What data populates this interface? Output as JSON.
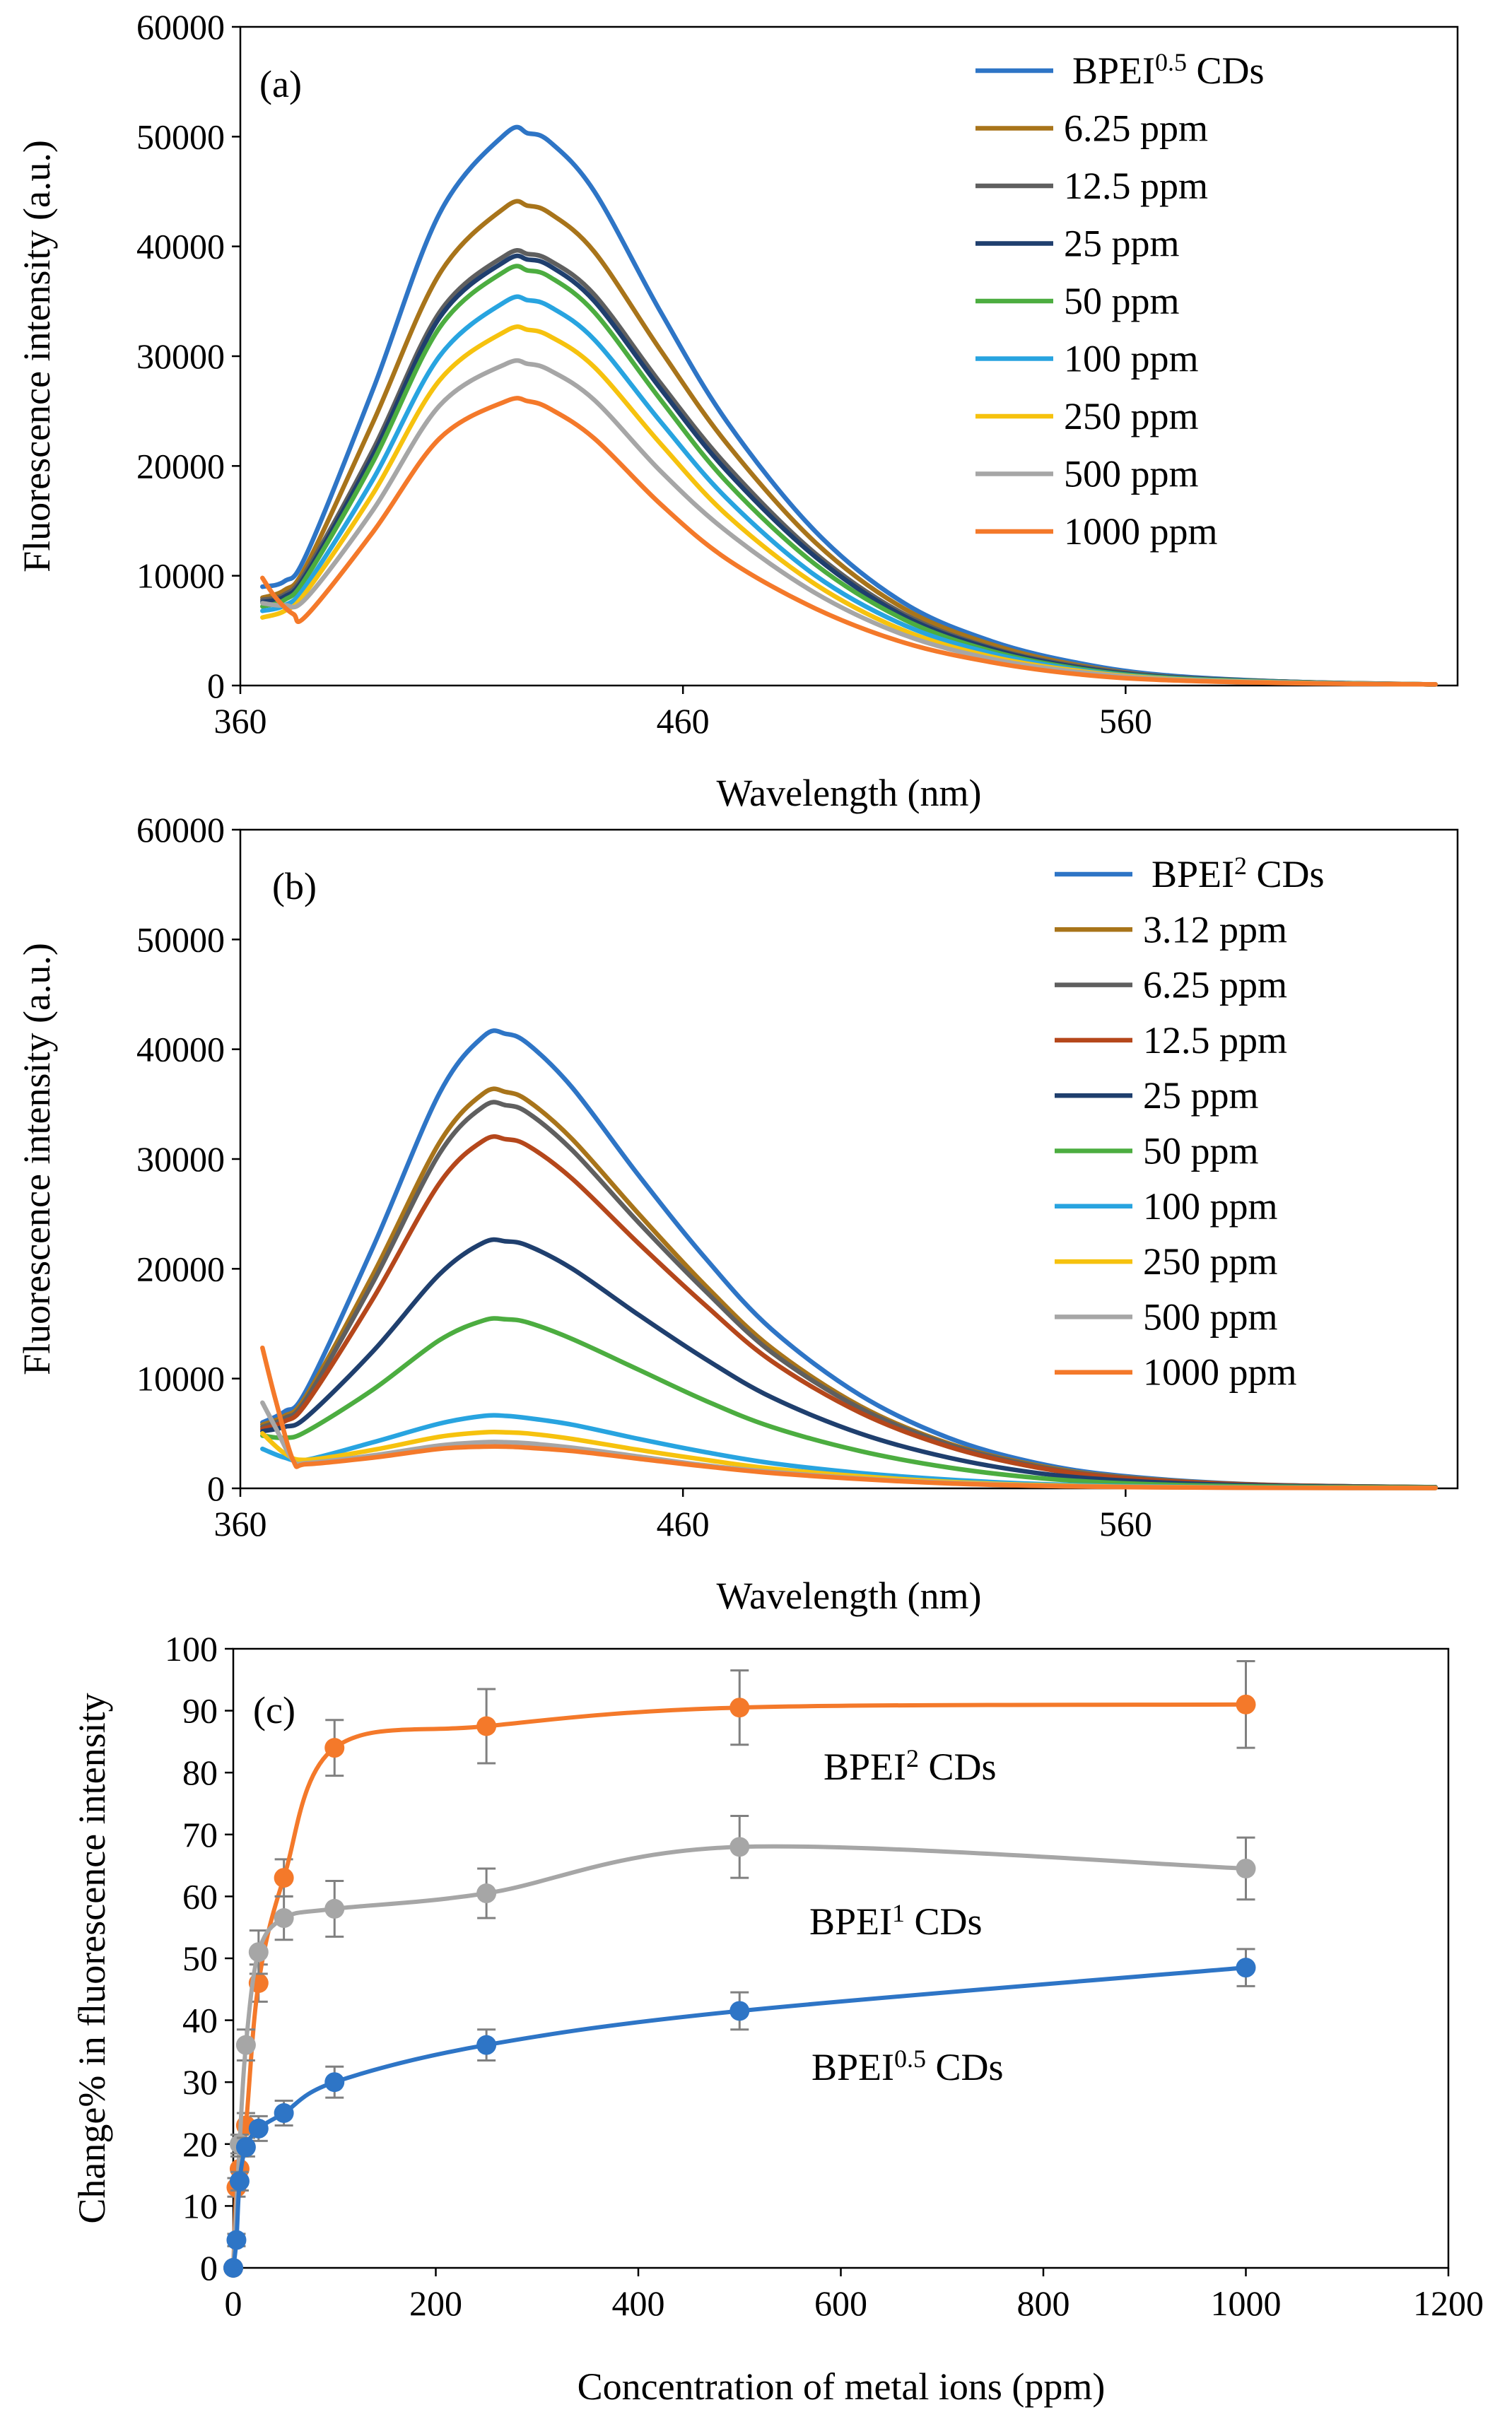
{
  "chart_data": [
    {
      "type": "line",
      "panel_label": "(a)",
      "xlabel": "Wavelength (nm)",
      "ylabel": "Fluorescence intensity (a.u.)",
      "xlim": [
        360,
        635
      ],
      "ylim": [
        0,
        60000
      ],
      "x_ticks": [
        "360",
        "460",
        "560"
      ],
      "y_ticks": [
        "0",
        "10000",
        "20000",
        "30000",
        "40000",
        "50000",
        "60000"
      ],
      "legend_position": "top-right",
      "series": [
        {
          "name": "BPEI0.5 CDs",
          "legend_base": "BPEI",
          "legend_sup": "0.5",
          "legend_tail": " CDs",
          "color": "#2E75C6",
          "x": [
            365,
            370,
            375,
            390,
            405,
            420,
            425,
            430,
            440,
            455,
            470,
            490,
            510,
            530,
            550,
            570,
            600,
            630
          ],
          "y": [
            9000,
            9500,
            12000,
            27000,
            43000,
            50300,
            50300,
            49500,
            45000,
            34000,
            24000,
            14000,
            7500,
            4000,
            2000,
            900,
            300,
            100
          ]
        },
        {
          "name": "6.25 ppm",
          "color": "#A8741A",
          "x": [
            365,
            370,
            375,
            390,
            405,
            420,
            425,
            430,
            440,
            455,
            470,
            490,
            510,
            530,
            550,
            570,
            600,
            630
          ],
          "y": [
            8000,
            8700,
            11000,
            24000,
            37500,
            43600,
            43700,
            43000,
            39500,
            30500,
            22000,
            13000,
            7000,
            3700,
            1800,
            800,
            300,
            100
          ]
        },
        {
          "name": "12.5 ppm",
          "color": "#5F5F5F",
          "x": [
            365,
            370,
            375,
            390,
            405,
            420,
            425,
            430,
            440,
            455,
            470,
            490,
            510,
            530,
            550,
            570,
            600,
            630
          ],
          "y": [
            7800,
            8300,
            10500,
            21500,
            34000,
            39200,
            39300,
            38700,
            35600,
            27500,
            20000,
            12000,
            6500,
            3400,
            1700,
            800,
            300,
            100
          ]
        },
        {
          "name": "25 ppm",
          "color": "#1F3F6E",
          "x": [
            365,
            370,
            375,
            390,
            405,
            420,
            425,
            430,
            440,
            455,
            470,
            490,
            510,
            530,
            550,
            570,
            600,
            630
          ],
          "y": [
            7600,
            8100,
            10200,
            21000,
            33500,
            38700,
            38800,
            38200,
            35000,
            27000,
            19500,
            11700,
            6300,
            3300,
            1600,
            750,
            300,
            100
          ]
        },
        {
          "name": "50 ppm",
          "color": "#4CAD40",
          "x": [
            365,
            370,
            375,
            390,
            405,
            420,
            425,
            430,
            440,
            455,
            470,
            490,
            510,
            530,
            550,
            570,
            600,
            630
          ],
          "y": [
            7200,
            7800,
            9900,
            20400,
            32600,
            37800,
            37800,
            37200,
            34000,
            26000,
            18500,
            11000,
            6000,
            3100,
            1500,
            700,
            280,
            100
          ]
        },
        {
          "name": "100 ppm",
          "color": "#28A4E0",
          "x": [
            365,
            370,
            375,
            390,
            405,
            420,
            425,
            430,
            440,
            455,
            470,
            490,
            510,
            530,
            550,
            570,
            600,
            630
          ],
          "y": [
            6800,
            7300,
            9200,
            18800,
            30000,
            35000,
            35100,
            34500,
            31500,
            24000,
            17000,
            10000,
            5500,
            2900,
            1400,
            650,
            260,
            100
          ]
        },
        {
          "name": "250 ppm",
          "color": "#F6C20E",
          "x": [
            365,
            370,
            375,
            390,
            405,
            420,
            425,
            430,
            440,
            455,
            470,
            490,
            510,
            530,
            550,
            570,
            600,
            630
          ],
          "y": [
            6200,
            6800,
            8600,
            17500,
            27800,
            32300,
            32400,
            31800,
            29000,
            22000,
            15500,
            9200,
            5000,
            2600,
            1300,
            600,
            240,
            100
          ]
        },
        {
          "name": "500 ppm",
          "color": "#A6A6A6",
          "x": [
            365,
            370,
            375,
            390,
            405,
            420,
            425,
            430,
            440,
            455,
            470,
            490,
            510,
            530,
            550,
            570,
            600,
            630
          ],
          "y": [
            7500,
            7300,
            8000,
            16000,
            25500,
            29300,
            29300,
            28700,
            26000,
            19500,
            14000,
            8400,
            4600,
            2400,
            1200,
            550,
            220,
            100
          ]
        },
        {
          "name": "1000 ppm",
          "color": "#F4792A",
          "x": [
            365,
            368,
            372,
            375,
            390,
            405,
            420,
            425,
            430,
            440,
            455,
            470,
            490,
            510,
            530,
            550,
            570,
            600,
            630
          ],
          "y": [
            9800,
            8000,
            6500,
            6400,
            14000,
            22500,
            25900,
            25900,
            25200,
            22500,
            16500,
            11500,
            7000,
            3900,
            2100,
            1000,
            480,
            200,
            100
          ]
        }
      ]
    },
    {
      "type": "line",
      "panel_label": "(b)",
      "xlabel": "Wavelength (nm)",
      "ylabel": "Fluorescence intensity (a.u.)",
      "xlim": [
        360,
        635
      ],
      "ylim": [
        0,
        60000
      ],
      "x_ticks": [
        "360",
        "460",
        "560"
      ],
      "y_ticks": [
        "0",
        "10000",
        "20000",
        "30000",
        "40000",
        "50000",
        "60000"
      ],
      "legend_position": "top-right",
      "series": [
        {
          "name": "BPEI2 CDs",
          "legend_base": "BPEI",
          "legend_sup": "2",
          "legend_tail": " CDs",
          "color": "#2E75C6",
          "x": [
            365,
            370,
            375,
            390,
            405,
            415,
            420,
            425,
            435,
            450,
            465,
            480,
            500,
            520,
            540,
            560,
            590,
            630
          ],
          "y": [
            6000,
            7000,
            9000,
            22000,
            36000,
            41200,
            41400,
            40500,
            36500,
            28500,
            21000,
            14500,
            8500,
            4600,
            2300,
            1100,
            350,
            100
          ]
        },
        {
          "name": "3.12 ppm",
          "color": "#A8741A",
          "x": [
            365,
            370,
            375,
            390,
            405,
            415,
            420,
            425,
            435,
            450,
            465,
            480,
            500,
            520,
            540,
            560,
            590,
            630
          ],
          "y": [
            5800,
            6600,
            8500,
            19500,
            31500,
            36000,
            36100,
            35300,
            31800,
            25000,
            18500,
            12800,
            7500,
            4100,
            2100,
            1000,
            330,
            100
          ]
        },
        {
          "name": "6.25 ppm",
          "color": "#5F5F5F",
          "x": [
            365,
            370,
            375,
            390,
            405,
            415,
            420,
            425,
            435,
            450,
            465,
            480,
            500,
            520,
            540,
            560,
            590,
            630
          ],
          "y": [
            5600,
            6400,
            8200,
            18800,
            30500,
            34800,
            34900,
            34200,
            30800,
            24200,
            18000,
            12400,
            7300,
            4000,
            2000,
            950,
            320,
            100
          ]
        },
        {
          "name": "12.5 ppm",
          "color": "#B5471B",
          "x": [
            365,
            370,
            375,
            390,
            405,
            415,
            420,
            425,
            435,
            450,
            465,
            480,
            500,
            520,
            540,
            560,
            590,
            630
          ],
          "y": [
            5400,
            6100,
            7800,
            17300,
            27800,
            31700,
            31800,
            31200,
            28200,
            22300,
            16700,
            11600,
            6900,
            3800,
            1900,
            900,
            310,
            100
          ]
        },
        {
          "name": "25 ppm",
          "color": "#1F3F6E",
          "x": [
            365,
            370,
            375,
            390,
            405,
            415,
            420,
            425,
            435,
            450,
            465,
            480,
            500,
            520,
            540,
            560,
            590,
            630
          ],
          "y": [
            5200,
            5600,
            6500,
            12500,
            19500,
            22400,
            22500,
            22100,
            20000,
            15800,
            11800,
            8300,
            5000,
            2800,
            1400,
            700,
            250,
            100
          ]
        },
        {
          "name": "50 ppm",
          "color": "#4CAD40",
          "x": [
            365,
            370,
            375,
            390,
            405,
            415,
            420,
            425,
            435,
            450,
            465,
            480,
            500,
            520,
            540,
            560,
            590,
            630
          ],
          "y": [
            4800,
            4600,
            5200,
            9000,
            13500,
            15300,
            15400,
            15100,
            13600,
            10800,
            8000,
            5600,
            3400,
            1900,
            950,
            450,
            170,
            80
          ]
        },
        {
          "name": "100 ppm",
          "color": "#28A4E0",
          "x": [
            365,
            370,
            375,
            390,
            405,
            415,
            420,
            425,
            435,
            450,
            465,
            480,
            500,
            520,
            540,
            560,
            590,
            630
          ],
          "y": [
            3600,
            2800,
            2600,
            4200,
            5900,
            6600,
            6600,
            6400,
            5800,
            4500,
            3300,
            2300,
            1400,
            800,
            400,
            200,
            80,
            40
          ]
        },
        {
          "name": "250 ppm",
          "color": "#F6C20E",
          "x": [
            365,
            370,
            375,
            390,
            405,
            415,
            420,
            425,
            435,
            450,
            465,
            480,
            500,
            520,
            540,
            560,
            590,
            630
          ],
          "y": [
            5000,
            3200,
            2600,
            3500,
            4700,
            5100,
            5100,
            5000,
            4500,
            3500,
            2600,
            1800,
            1100,
            600,
            300,
            150,
            60,
            30
          ]
        },
        {
          "name": "500 ppm",
          "color": "#A6A6A6",
          "x": [
            365,
            368,
            372,
            375,
            390,
            405,
            415,
            420,
            425,
            435,
            450,
            465,
            480,
            500,
            520,
            540,
            560,
            590,
            630
          ],
          "y": [
            7800,
            5500,
            2500,
            2300,
            3000,
            3900,
            4200,
            4200,
            4100,
            3700,
            2900,
            2100,
            1500,
            900,
            500,
            250,
            120,
            50,
            30
          ]
        },
        {
          "name": "1000 ppm",
          "color": "#F4792A",
          "x": [
            365,
            368,
            372,
            375,
            390,
            405,
            415,
            420,
            425,
            435,
            450,
            465,
            480,
            500,
            520,
            540,
            560,
            590,
            630
          ],
          "y": [
            12800,
            8000,
            2500,
            2200,
            2800,
            3600,
            3800,
            3800,
            3700,
            3400,
            2700,
            2000,
            1400,
            850,
            450,
            230,
            110,
            50,
            30
          ]
        }
      ]
    },
    {
      "type": "line",
      "panel_label": "(c)",
      "xlabel": "Concentration of metal ions (ppm)",
      "ylabel": "Change% in fluorescence intensity",
      "xlim": [
        0,
        1200
      ],
      "ylim": [
        0,
        100
      ],
      "x_ticks": [
        "0",
        "200",
        "400",
        "600",
        "800",
        "1000",
        "1200"
      ],
      "y_ticks": [
        "0",
        "10",
        "20",
        "30",
        "40",
        "50",
        "60",
        "70",
        "80",
        "90",
        "100"
      ],
      "series": [
        {
          "name": "BPEI2 CDs",
          "label_base": "BPEI",
          "label_sup": "2",
          "label_tail": " CDs",
          "color": "#F4792A",
          "x": [
            0,
            3.12,
            6.25,
            12.5,
            25,
            50,
            100,
            250,
            500,
            1000
          ],
          "y": [
            0,
            13,
            16,
            23,
            46,
            63,
            84,
            87.5,
            90.5,
            91
          ],
          "err": [
            0,
            1.5,
            2,
            2,
            3,
            3,
            4.5,
            6,
            6,
            7
          ]
        },
        {
          "name": "BPEI1 CDs",
          "label_base": "BPEI",
          "label_sup": "1",
          "label_tail": " CDs",
          "color": "#A6A6A6",
          "x": [
            0,
            6.25,
            12.5,
            25,
            50,
            100,
            250,
            500,
            1000
          ],
          "y": [
            0,
            20,
            36,
            51,
            56.5,
            58,
            60.5,
            68,
            64.5
          ],
          "err": [
            0,
            1.5,
            2.5,
            3.5,
            3.5,
            4.5,
            4,
            5,
            5
          ]
        },
        {
          "name": "BPEI0.5 CDs",
          "label_base": "BPEI",
          "label_sup": "0.5",
          "label_tail": " CDs",
          "color": "#2E75C6",
          "x": [
            0,
            3.12,
            6.25,
            12.5,
            25,
            50,
            100,
            250,
            500,
            1000
          ],
          "y": [
            0,
            4.5,
            14,
            19.5,
            22.5,
            25,
            30,
            36,
            41.5,
            48.5
          ],
          "err": [
            0,
            1,
            1.5,
            1.5,
            2,
            2,
            2.5,
            2.5,
            3,
            3
          ]
        }
      ]
    }
  ]
}
